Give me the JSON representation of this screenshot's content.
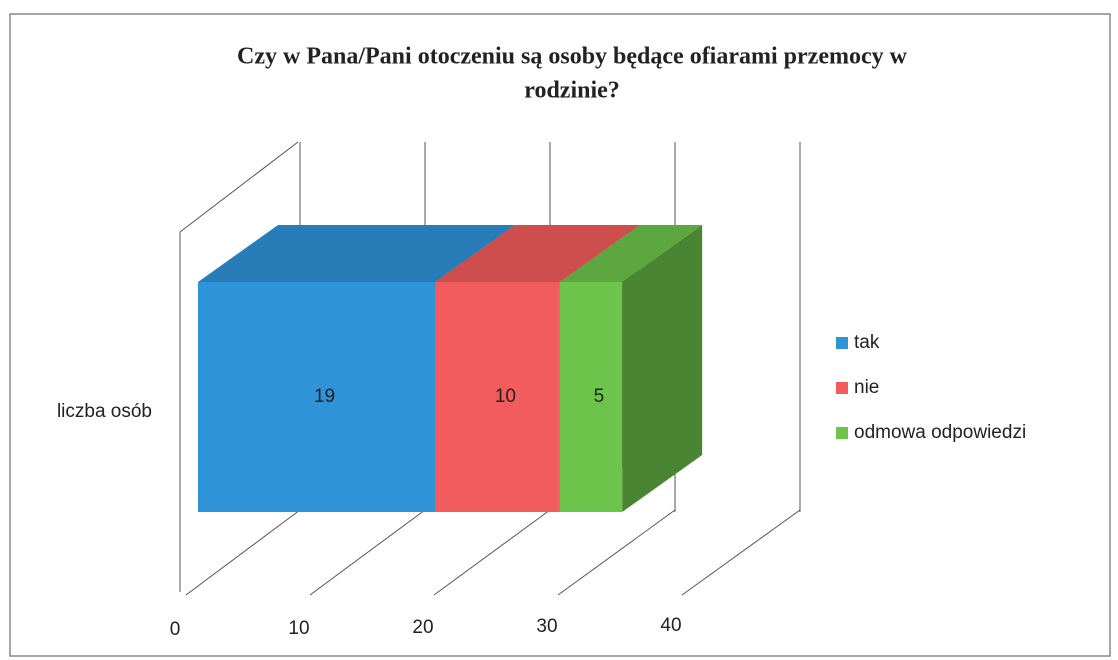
{
  "chart_data": {
    "type": "bar3d_stacked_horizontal",
    "title": [
      "Czy w Pana/Pani otoczeniu są osoby będące ofiarami przemocy w",
      "rodzinie?"
    ],
    "categories": [
      "liczba osób"
    ],
    "series": [
      {
        "name": "tak",
        "color": "#2f93d8",
        "values": [
          19
        ]
      },
      {
        "name": "nie",
        "color": "#f25c5c",
        "values": [
          10
        ]
      },
      {
        "name": "odmowa odpowiedzi",
        "color": "#6dc44b",
        "values": [
          5
        ]
      }
    ],
    "xlim": [
      0,
      40
    ],
    "xticks": [
      0,
      10,
      20,
      30,
      40
    ],
    "grid": true,
    "legend": "right"
  }
}
